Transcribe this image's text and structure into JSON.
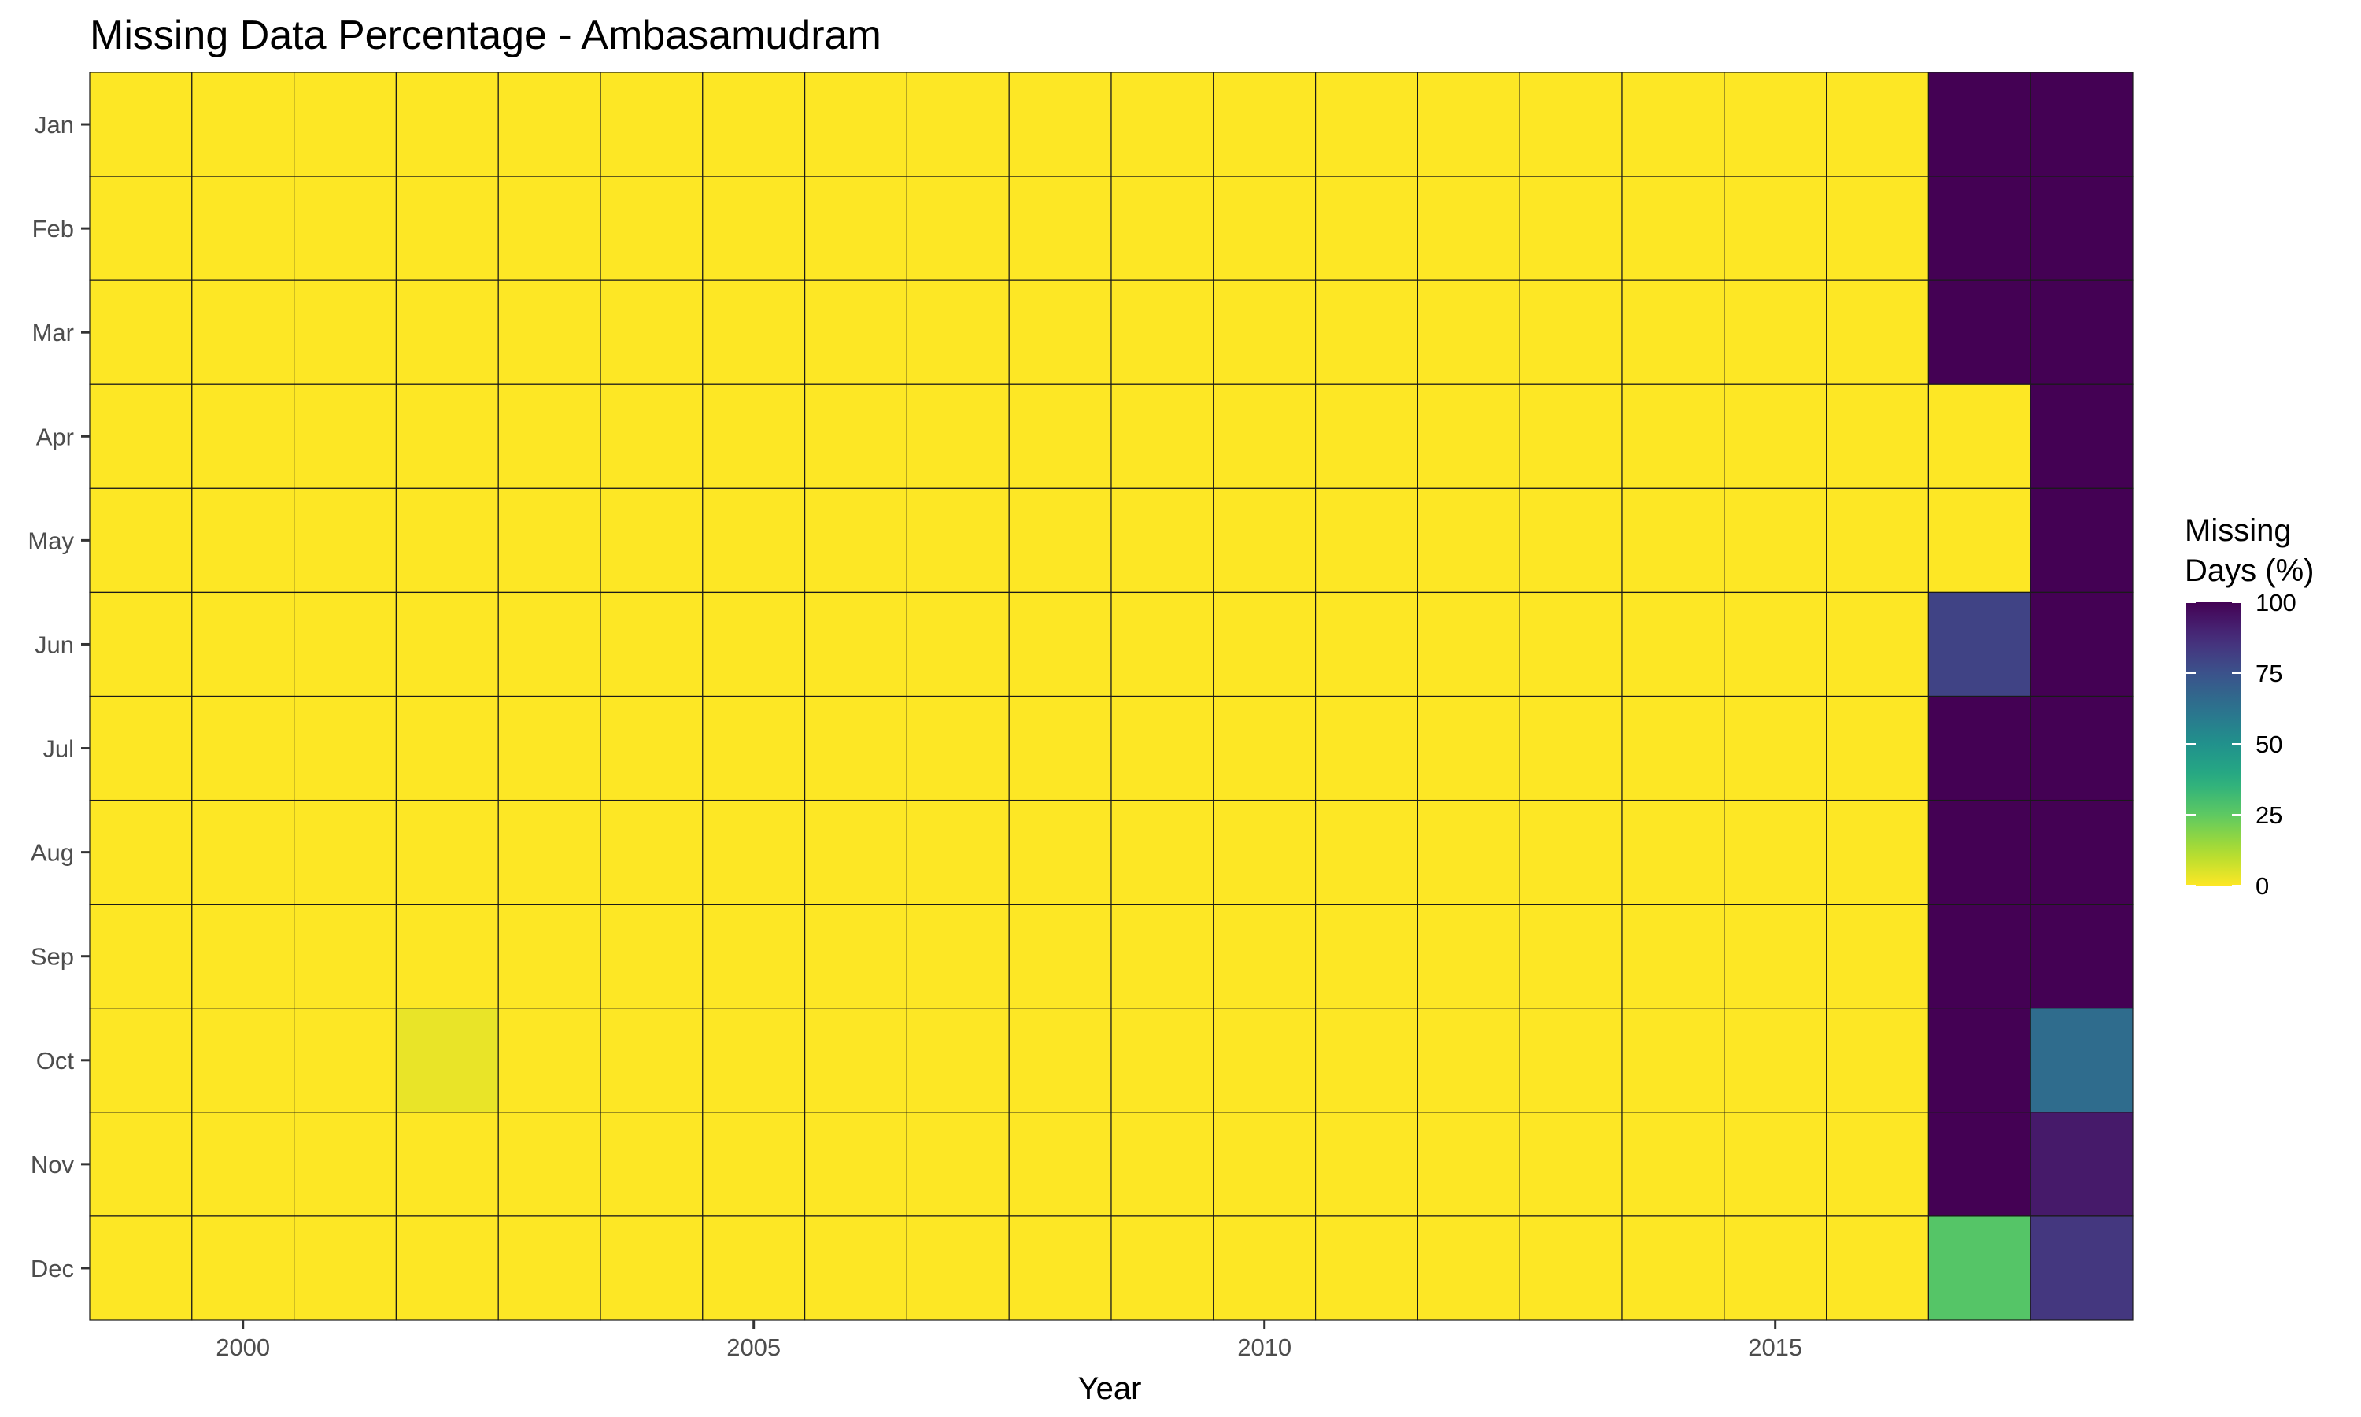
{
  "chart_data": {
    "type": "heatmap",
    "title": "Missing Data Percentage - Ambasamudram",
    "xlabel": "Year",
    "ylabel": "",
    "x_ticks": [
      2000,
      2005,
      2010,
      2015
    ],
    "years": [
      1999,
      2000,
      2001,
      2002,
      2003,
      2004,
      2005,
      2006,
      2007,
      2008,
      2009,
      2010,
      2011,
      2012,
      2013,
      2014,
      2015,
      2016,
      2017,
      2018
    ],
    "months": [
      "Jan",
      "Feb",
      "Mar",
      "Apr",
      "May",
      "Jun",
      "Jul",
      "Aug",
      "Sep",
      "Oct",
      "Nov",
      "Dec"
    ],
    "values": [
      [
        0,
        0,
        0,
        0,
        0,
        0,
        0,
        0,
        0,
        0,
        0,
        0,
        0,
        0,
        0,
        0,
        0,
        0,
        100,
        100
      ],
      [
        0,
        0,
        0,
        0,
        0,
        0,
        0,
        0,
        0,
        0,
        0,
        0,
        0,
        0,
        0,
        0,
        0,
        0,
        100,
        100
      ],
      [
        0,
        0,
        0,
        0,
        0,
        0,
        0,
        0,
        0,
        0,
        0,
        0,
        0,
        0,
        0,
        0,
        0,
        0,
        100,
        100
      ],
      [
        0,
        0,
        0,
        0,
        0,
        0,
        0,
        0,
        0,
        0,
        0,
        0,
        0,
        0,
        0,
        0,
        0,
        0,
        0,
        100
      ],
      [
        0,
        0,
        0,
        0,
        0,
        0,
        0,
        0,
        0,
        0,
        0,
        0,
        0,
        0,
        0,
        0,
        0,
        0,
        0,
        100
      ],
      [
        0,
        0,
        0,
        0,
        0,
        0,
        0,
        0,
        0,
        0,
        0,
        0,
        0,
        0,
        0,
        0,
        0,
        0,
        80,
        100
      ],
      [
        0,
        0,
        0,
        0,
        0,
        0,
        0,
        0,
        0,
        0,
        0,
        0,
        0,
        0,
        0,
        0,
        0,
        0,
        100,
        100
      ],
      [
        0,
        0,
        0,
        0,
        0,
        0,
        0,
        0,
        0,
        0,
        0,
        0,
        0,
        0,
        0,
        0,
        0,
        0,
        100,
        100
      ],
      [
        0,
        0,
        0,
        0,
        0,
        0,
        0,
        0,
        0,
        0,
        0,
        0,
        0,
        0,
        0,
        0,
        0,
        0,
        100,
        100
      ],
      [
        0,
        0,
        0,
        3,
        0,
        0,
        0,
        0,
        0,
        0,
        0,
        0,
        0,
        0,
        0,
        0,
        0,
        0,
        100,
        65
      ],
      [
        0,
        0,
        0,
        0,
        0,
        0,
        0,
        0,
        0,
        0,
        0,
        0,
        0,
        0,
        0,
        0,
        0,
        0,
        100,
        93
      ],
      [
        0,
        0,
        0,
        0,
        0,
        0,
        0,
        0,
        0,
        0,
        0,
        0,
        0,
        0,
        0,
        0,
        0,
        0,
        27,
        84
      ]
    ],
    "zlim": [
      0,
      100
    ],
    "legend": {
      "title_lines": [
        "Missing",
        "Days (%)"
      ],
      "ticks": [
        100,
        75,
        50,
        25,
        0
      ],
      "position": "right"
    },
    "colorscale": "viridis-reversed",
    "grid": false
  }
}
